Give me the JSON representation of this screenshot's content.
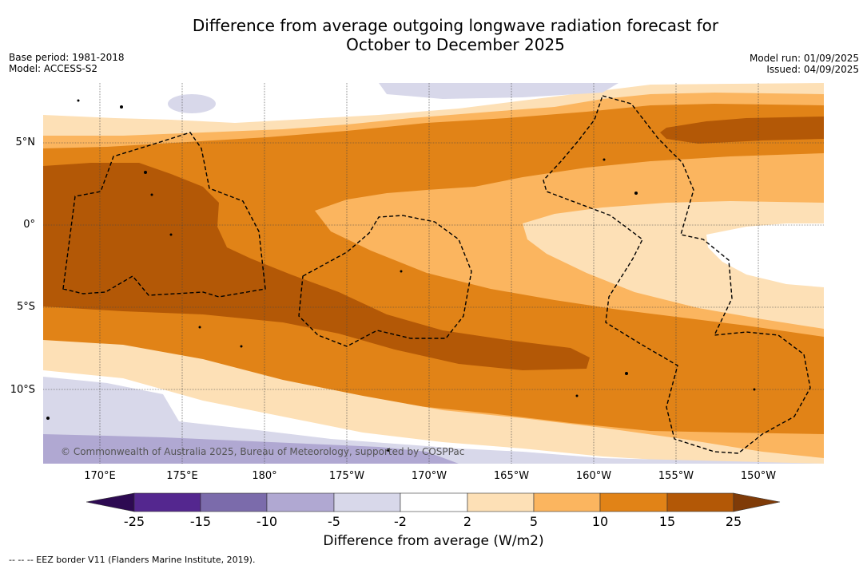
{
  "title_line1": "Difference from average outgoing longwave radiation forecast for",
  "title_line2": "October to December 2025",
  "base_period": "Base period: 1981-2018",
  "model": "Model: ACCESS-S2",
  "model_run": "Model run: 01/09/2025",
  "issued": "Issued: 04/09/2025",
  "latitude_labels": [
    "5°N",
    "0°",
    "5°S",
    "10°S"
  ],
  "longitude_labels": [
    "170°E",
    "175°E",
    "180°",
    "175°W",
    "170°W",
    "165°W",
    "160°W",
    "155°W",
    "150°W"
  ],
  "copyright": "© Commonwealth of Australia 2025, Bureau of Meteorology, supported by COSPPac",
  "colorbar": {
    "title": "Difference from average (W/m2)",
    "ticks": [
      "-25",
      "-15",
      "-10",
      "-5",
      "-2",
      "2",
      "5",
      "10",
      "15",
      "25"
    ],
    "colors": {
      "below_-25": "#2d0a52",
      "-25_-15": "#54278f",
      "-15_-10": "#7b6bab",
      "-10_-5": "#b0a8d2",
      "-5_-2": "#d8d8ea",
      "-2_2": "#ffffff",
      "2_5": "#fde0b6",
      "5_10": "#fbb55f",
      "10_15": "#e18317",
      "15_25": "#b35806",
      "above_25": "#7f3b08"
    }
  },
  "footer": "--  --  -- EEZ border V11 (Flanders Marine Institute, 2019)."
}
